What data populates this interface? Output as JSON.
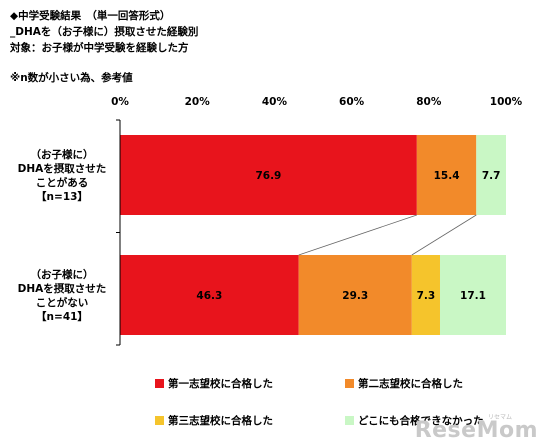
{
  "header": {
    "line1": "◆中学受験結果　（単一回答形式）",
    "line2": "_DHAを（お子様に）摂取させた経験別",
    "line3": "対象：お子様が中学受験を経験した方"
  },
  "note": "※n数が小さい為、参考値",
  "watermark": {
    "text": "ReseMom",
    "small": "リセマム"
  },
  "chart_data": {
    "type": "bar",
    "orientation": "horizontal",
    "stacked": true,
    "xlim": [
      0,
      100
    ],
    "ticks": [
      "0%",
      "20%",
      "40%",
      "60%",
      "80%",
      "100%"
    ],
    "tick_values": [
      0,
      20,
      40,
      60,
      80,
      100
    ],
    "categories": [
      [
        "（お子様に）",
        "DHAを摂取させた",
        "ことがある",
        "【n=13】"
      ],
      [
        "（お子様に）",
        "DHAを摂取させた",
        "ことがない",
        "【n=41】"
      ]
    ],
    "series": [
      {
        "name": "第一志望校に合格した",
        "color": "#e8141c",
        "values": [
          76.9,
          46.3
        ],
        "labels": [
          "76.9",
          "46.3"
        ]
      },
      {
        "name": "第二志望校に合格した",
        "color": "#f28a2a",
        "values": [
          15.4,
          29.3
        ],
        "labels": [
          "15.4",
          "29.3"
        ]
      },
      {
        "name": "第三志望校に合格した",
        "color": "#f5c42c",
        "values": [
          0,
          7.3
        ],
        "labels": [
          "",
          "7.3"
        ]
      },
      {
        "name": "どこにも合格できなかった",
        "color": "#c9f7c5",
        "values": [
          7.7,
          17.1
        ],
        "labels": [
          "7.7",
          "17.1"
        ]
      }
    ],
    "legend_position": "bottom",
    "connector_lines": true,
    "grid": false
  }
}
